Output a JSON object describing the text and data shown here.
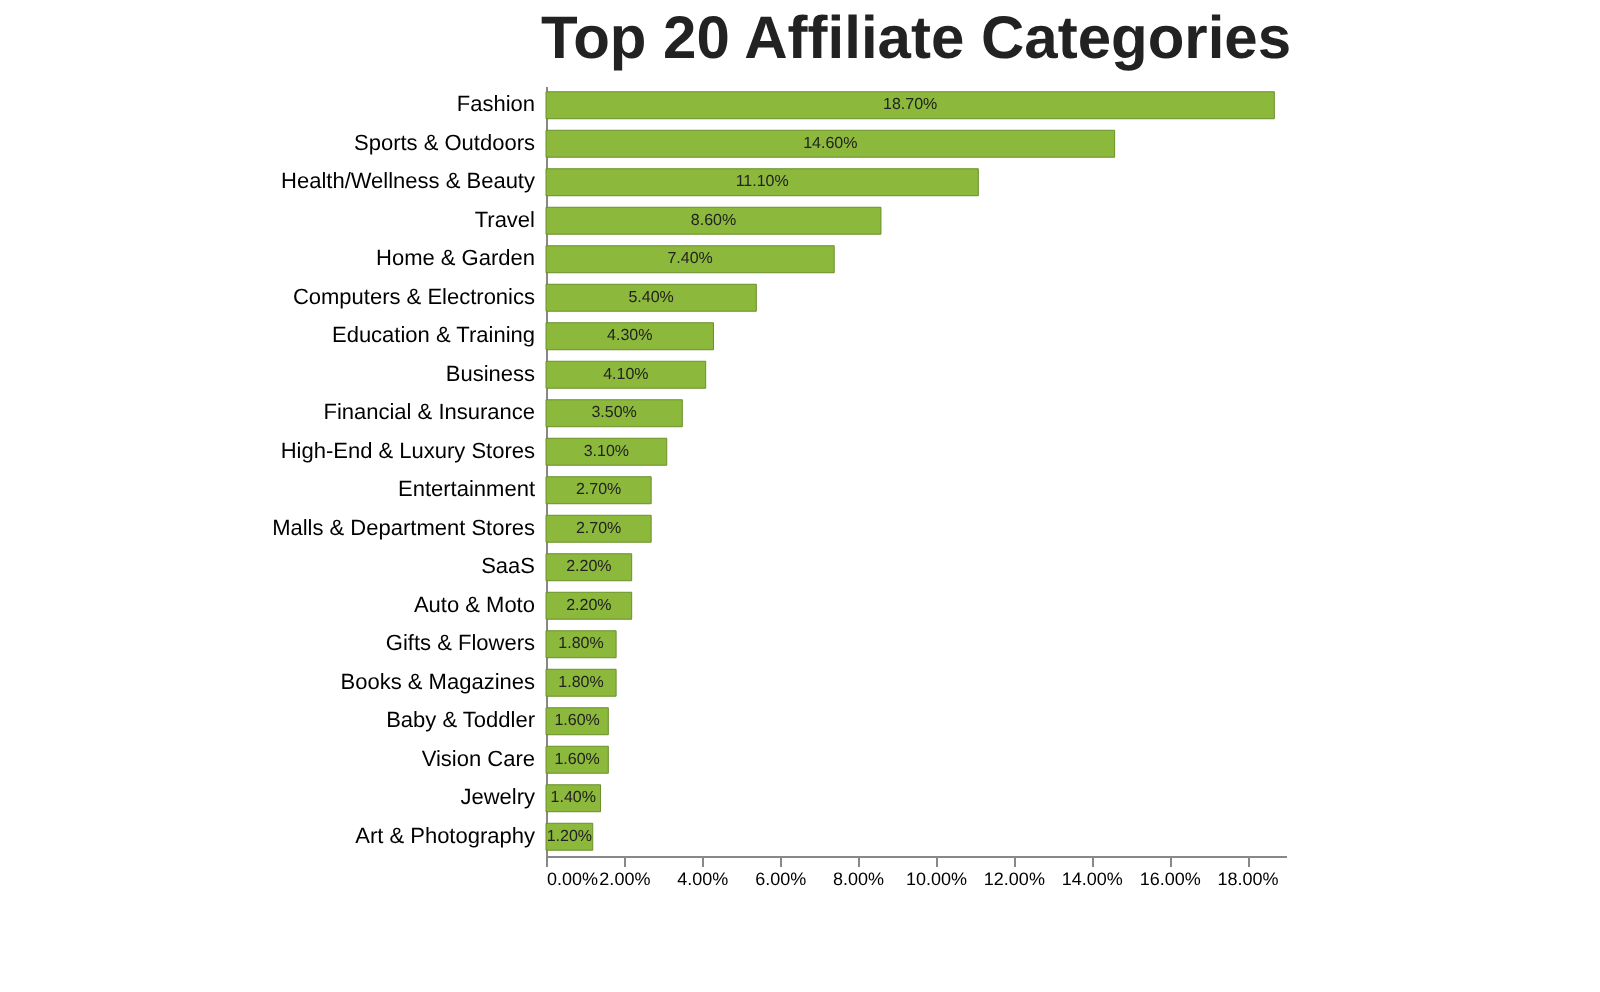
{
  "chart_data": {
    "type": "bar",
    "orientation": "horizontal",
    "title": "Top 20 Affiliate Categories",
    "categories": [
      "Fashion",
      "Sports & Outdoors",
      "Health/Wellness & Beauty",
      "Travel",
      "Home & Garden",
      "Computers & Electronics",
      "Education & Training",
      "Business",
      "Financial & Insurance",
      "High-End & Luxury Stores",
      "Entertainment",
      "Malls & Department Stores",
      "SaaS",
      "Auto & Moto",
      "Gifts & Flowers",
      "Books & Magazines",
      "Baby & Toddler",
      "Vision Care",
      "Jewelry",
      "Art & Photography"
    ],
    "values": [
      18.7,
      14.6,
      11.1,
      8.6,
      7.4,
      5.4,
      4.3,
      4.1,
      3.5,
      3.1,
      2.7,
      2.7,
      2.2,
      2.2,
      1.8,
      1.8,
      1.6,
      1.6,
      1.4,
      1.2
    ],
    "value_labels": [
      "18.70%",
      "14.60%",
      "11.10%",
      "8.60%",
      "7.40%",
      "5.40%",
      "4.30%",
      "4.10%",
      "3.50%",
      "3.10%",
      "2.70%",
      "2.70%",
      "2.20%",
      "2.20%",
      "1.80%",
      "1.80%",
      "1.60%",
      "1.60%",
      "1.40%",
      "1.20%"
    ],
    "color": "#8cb83c",
    "xlim": [
      0,
      19
    ],
    "xticks": [
      {
        "value": 0,
        "label": "0.00%"
      },
      {
        "value": 2,
        "label": "2.00%"
      },
      {
        "value": 4,
        "label": "4.00%"
      },
      {
        "value": 6,
        "label": "6.00%"
      },
      {
        "value": 8,
        "label": "8.00%"
      },
      {
        "value": 10,
        "label": "10.00%"
      },
      {
        "value": 12,
        "label": "12.00%"
      },
      {
        "value": 14,
        "label": "14.00%"
      },
      {
        "value": 16,
        "label": "16.00%"
      },
      {
        "value": 18,
        "label": "18.00%"
      }
    ],
    "grid": false
  }
}
